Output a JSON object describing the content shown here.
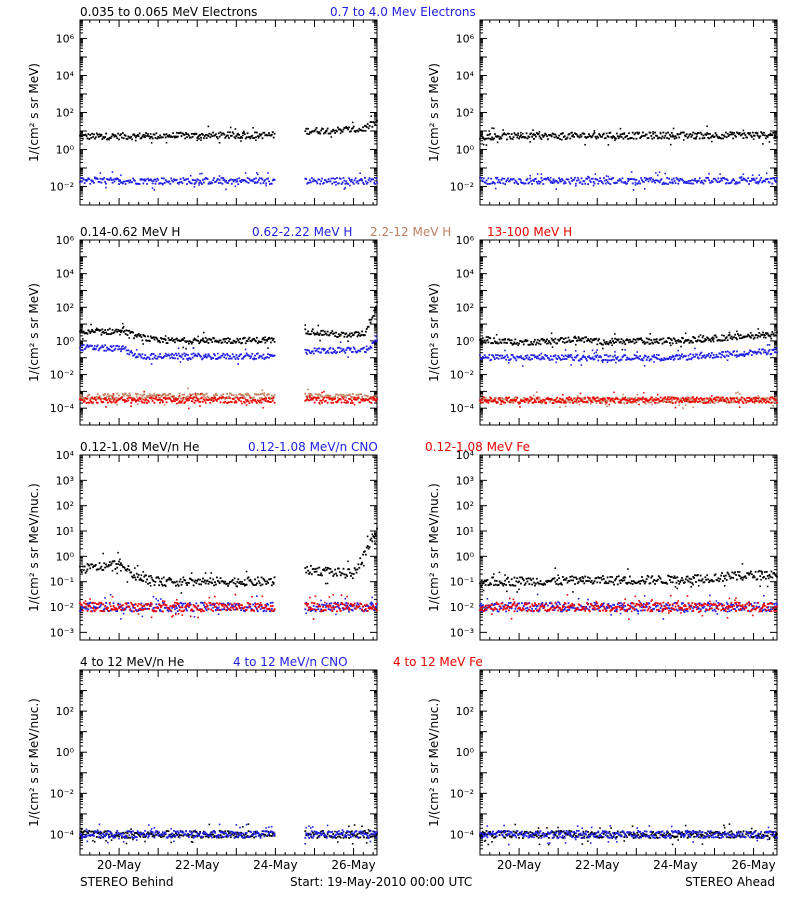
{
  "footer": {
    "left": "STEREO Behind",
    "center": "Start: 19-May-2010 00:00 UTC",
    "right": "STEREO Ahead"
  },
  "x_ticks": [
    "20-May",
    "22-May",
    "24-May",
    "26-May"
  ],
  "colors": {
    "black": "#000000",
    "blue": "#1f1fe6",
    "tan": "#c08060",
    "red": "#ee0000"
  },
  "chart_data": [
    {
      "id": "electrons",
      "type": "scatter",
      "ylabel": "1/(cm² s sr MeV)",
      "yscale": "log",
      "ylim": [
        0.001,
        10000000
      ],
      "ytick_exp": [
        -2,
        0,
        2,
        4,
        6
      ],
      "xlim_days": [
        0,
        7.6
      ],
      "legend": [
        {
          "text": "0.035 to 0.065 MeV Electrons",
          "color": "#000000"
        },
        {
          "text": "0.7 to 4.0 Mev Electrons",
          "color": "#1f1fe6"
        }
      ],
      "behind_gap_days": [
        5.0,
        5.75
      ],
      "series": [
        {
          "color": "#000000",
          "behind": [
            [
              0,
              5
            ],
            [
              5,
              6
            ],
            [
              5.75,
              10
            ],
            [
              7.2,
              12
            ],
            [
              7.6,
              30
            ]
          ],
          "ahead": [
            [
              0,
              5
            ],
            [
              3,
              5.5
            ],
            [
              7.6,
              6
            ]
          ]
        },
        {
          "color": "#1f1fe6",
          "behind": [
            [
              0,
              0.02
            ],
            [
              7.6,
              0.02
            ]
          ],
          "ahead": [
            [
              0,
              0.02
            ],
            [
              7.6,
              0.02
            ]
          ]
        }
      ]
    },
    {
      "id": "protons",
      "type": "scatter",
      "ylabel": "1/(cm² s sr MeV)",
      "yscale": "log",
      "ylim": [
        1e-05,
        1000000
      ],
      "ytick_exp": [
        -4,
        -2,
        0,
        2,
        4,
        6
      ],
      "xlim_days": [
        0,
        7.6
      ],
      "legend": [
        {
          "text": "0.14-0.62 MeV H",
          "color": "#000000"
        },
        {
          "text": "0.62-2.22 MeV H",
          "color": "#1f1fe6"
        },
        {
          "text": "2.2-12 MeV H",
          "color": "#c08060"
        },
        {
          "text": "13-100 MeV H",
          "color": "#ee0000"
        }
      ],
      "behind_gap_days": [
        5.0,
        5.75
      ],
      "series": [
        {
          "color": "#000000",
          "behind": [
            [
              0,
              3
            ],
            [
              1.1,
              4
            ],
            [
              1.4,
              2
            ],
            [
              2,
              1
            ],
            [
              5,
              1.1
            ],
            [
              5.75,
              4
            ],
            [
              6.9,
              2
            ],
            [
              7.3,
              3
            ],
            [
              7.6,
              150
            ]
          ],
          "ahead": [
            [
              0,
              1.2
            ],
            [
              1,
              0.8
            ],
            [
              2.2,
              1.1
            ],
            [
              2.5,
              1.4
            ],
            [
              3,
              0.9
            ],
            [
              5,
              1
            ],
            [
              7,
              2
            ],
            [
              7.6,
              3
            ]
          ]
        },
        {
          "color": "#1f1fe6",
          "behind": [
            [
              0,
              0.4
            ],
            [
              1.1,
              0.35
            ],
            [
              1.5,
              0.12
            ],
            [
              5,
              0.12
            ],
            [
              5.75,
              0.25
            ],
            [
              7.3,
              0.3
            ],
            [
              7.6,
              1
            ]
          ],
          "ahead": [
            [
              0,
              0.1
            ],
            [
              5,
              0.1
            ],
            [
              7.6,
              0.25
            ]
          ]
        },
        {
          "color": "#c08060",
          "behind": [
            [
              0,
              0.0005
            ],
            [
              7.6,
              0.0005
            ]
          ],
          "ahead": [
            [
              0,
              0.0003
            ],
            [
              7.6,
              0.0003
            ]
          ]
        },
        {
          "color": "#ee0000",
          "behind": [
            [
              0,
              0.0003
            ],
            [
              7.6,
              0.0003
            ]
          ],
          "ahead": [
            [
              0,
              0.0003
            ],
            [
              7.6,
              0.0003
            ]
          ]
        }
      ]
    },
    {
      "id": "heavy-low",
      "type": "scatter",
      "ylabel": "1/(cm² s sr MeV/nuc.)",
      "yscale": "log",
      "ylim": [
        0.0005,
        10000
      ],
      "ytick_exp": [
        -3,
        -2,
        -1,
        0,
        1,
        2,
        3,
        4
      ],
      "xlim_days": [
        0,
        7.6
      ],
      "legend": [
        {
          "text": "0.12-1.08 MeV/n He",
          "color": "#000000"
        },
        {
          "text": "0.12-1.08 MeV/n CNO",
          "color": "#1f1fe6"
        },
        {
          "text": "0.12-1.08 MeV Fe",
          "color": "#ee0000"
        }
      ],
      "behind_gap_days": [
        5.0,
        5.75
      ],
      "series": [
        {
          "color": "#000000",
          "behind": [
            [
              0,
              0.3
            ],
            [
              1,
              0.5
            ],
            [
              1.5,
              0.15
            ],
            [
              2,
              0.1
            ],
            [
              5,
              0.1
            ],
            [
              5.75,
              0.3
            ],
            [
              7,
              0.2
            ],
            [
              7.6,
              10
            ]
          ],
          "ahead": [
            [
              0,
              0.1
            ],
            [
              5,
              0.12
            ],
            [
              7.6,
              0.2
            ]
          ]
        },
        {
          "color": "#1f1fe6",
          "behind": [
            [
              0,
              0.01
            ],
            [
              7.6,
              0.01
            ]
          ],
          "ahead": [
            [
              0,
              0.01
            ],
            [
              7.6,
              0.01
            ]
          ]
        },
        {
          "color": "#ee0000",
          "behind": [
            [
              0,
              0.01
            ],
            [
              7.6,
              0.01
            ]
          ],
          "ahead": [
            [
              0,
              0.01
            ],
            [
              7.6,
              0.01
            ]
          ]
        }
      ]
    },
    {
      "id": "heavy-high",
      "type": "scatter",
      "ylabel": "1/(cm² s sr MeV/nuc.)",
      "yscale": "log",
      "ylim": [
        1e-05,
        10000
      ],
      "ytick_exp": [
        -4,
        -2,
        0,
        2
      ],
      "xlim_days": [
        0,
        7.6
      ],
      "legend": [
        {
          "text": "4 to 12 MeV/n He",
          "color": "#000000"
        },
        {
          "text": "4 to 12 MeV/n CNO",
          "color": "#1f1fe6"
        },
        {
          "text": "4 to 12 MeV Fe",
          "color": "#ee0000"
        }
      ],
      "behind_gap_days": [
        5.0,
        5.75
      ],
      "series": [
        {
          "color": "#000000",
          "behind": [
            [
              0,
              0.0001
            ],
            [
              7.6,
              0.0001
            ]
          ],
          "ahead": [
            [
              0,
              0.0001
            ],
            [
              7.6,
              0.0001
            ]
          ]
        },
        {
          "color": "#1f1fe6",
          "behind": [
            [
              0,
              0.0001
            ],
            [
              7.6,
              0.0001
            ]
          ],
          "ahead": [
            [
              0,
              0.0001
            ],
            [
              7.6,
              0.0001
            ]
          ]
        }
      ]
    }
  ]
}
